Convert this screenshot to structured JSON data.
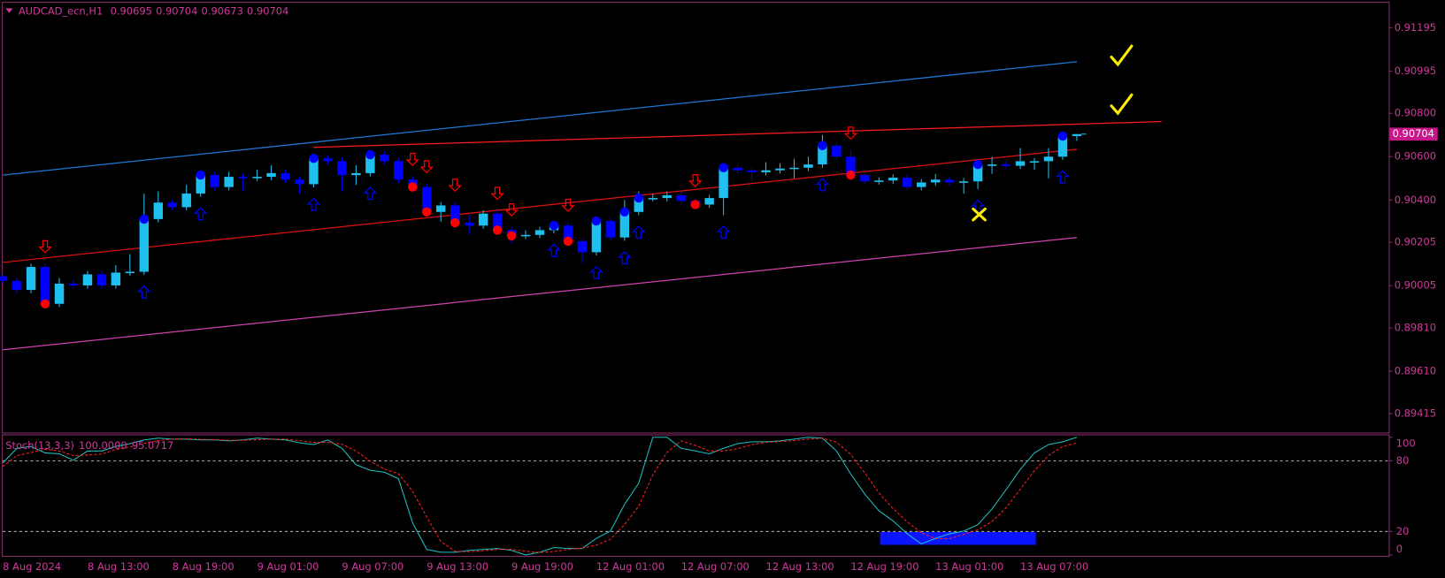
{
  "chart_data": [
    {
      "type": "candlestick",
      "symbol": "AUDCAD_ecn,H1",
      "categories": [
        "8 Aug 2024",
        null,
        null,
        null,
        null,
        null,
        "8 Aug 13:00",
        null,
        null,
        null,
        null,
        null,
        "8 Aug 19:00",
        null,
        null,
        null,
        null,
        null,
        "9 Aug 01:00",
        null,
        null,
        null,
        null,
        null,
        "9 Aug 07:00",
        null,
        null,
        null,
        null,
        null,
        "9 Aug 13:00",
        null,
        null,
        null,
        null,
        null,
        "9 Aug 19:00",
        null,
        null,
        null,
        null,
        null,
        "12 Aug 01:00",
        null,
        null,
        null,
        null,
        null,
        "12 Aug 07:00",
        null,
        null,
        null,
        null,
        null,
        "12 Aug 13:00",
        null,
        null,
        null,
        null,
        null,
        "12 Aug 19:00",
        null,
        null,
        null,
        null,
        null,
        "13 Aug 01:00",
        null,
        null,
        null,
        null,
        null,
        "13 Aug 07:00",
        null,
        null,
        null,
        null
      ],
      "open": [
        0.90048,
        0.90027,
        0.89985,
        0.90091,
        0.89921,
        0.90014,
        0.90006,
        0.90057,
        0.90006,
        0.90065,
        0.90069,
        0.90312,
        0.90388,
        0.90367,
        0.9043,
        0.90515,
        0.9046,
        0.90507,
        0.90503,
        0.90507,
        0.90524,
        0.90494,
        0.90473,
        0.90592,
        0.90579,
        0.90515,
        0.90524,
        0.90609,
        0.90579,
        0.90494,
        0.9046,
        0.90345,
        0.90375,
        0.90295,
        0.90282,
        0.90337,
        0.90261,
        0.90235,
        0.90239,
        0.90261,
        0.90282,
        0.9021,
        0.90159,
        0.90303,
        0.90227,
        0.90345,
        0.90409,
        0.90409,
        0.90422,
        0.90396,
        0.90379,
        0.90409,
        0.90549,
        0.90537,
        0.90528,
        0.90537,
        0.90545,
        0.90549,
        0.90564,
        0.90651,
        0.906,
        0.90515,
        0.90486,
        0.9049,
        0.90503,
        0.9046,
        0.90481,
        0.90494,
        0.90481,
        0.90486,
        0.90564,
        0.90564,
        0.90558,
        0.90579,
        0.90579,
        0.906,
        0.90695
      ],
      "high": [
        0.90063,
        0.90042,
        0.90106,
        0.90106,
        0.9004,
        0.90029,
        0.90072,
        0.90072,
        0.901,
        0.9015,
        0.9043,
        0.9044,
        0.90403,
        0.9047,
        0.9053,
        0.9053,
        0.9053,
        0.90522,
        0.9054,
        0.9056,
        0.90539,
        0.90509,
        0.90607,
        0.90607,
        0.90594,
        0.9056,
        0.90624,
        0.90624,
        0.90594,
        0.90509,
        0.90475,
        0.9039,
        0.9039,
        0.9033,
        0.90352,
        0.90352,
        0.90276,
        0.9026,
        0.90276,
        0.90297,
        0.90297,
        0.90225,
        0.90318,
        0.90318,
        0.904,
        0.9044,
        0.9043,
        0.9044,
        0.90437,
        0.90411,
        0.90424,
        0.90564,
        0.90564,
        0.90552,
        0.90575,
        0.9057,
        0.9059,
        0.906,
        0.907,
        0.90666,
        0.9063,
        0.9053,
        0.90505,
        0.90518,
        0.90518,
        0.90496,
        0.9052,
        0.90509,
        0.90501,
        0.90579,
        0.906,
        0.90579,
        0.9064,
        0.90594,
        0.9064,
        0.9071,
        0.90704
      ],
      "low": [
        0.90012,
        0.8997,
        0.8997,
        0.899,
        0.89906,
        0.89991,
        0.89991,
        0.89991,
        0.89991,
        0.9005,
        0.90054,
        0.90297,
        0.90352,
        0.90352,
        0.90415,
        0.90445,
        0.90445,
        0.9044,
        0.90488,
        0.90492,
        0.90479,
        0.9043,
        0.90458,
        0.90564,
        0.9044,
        0.9047,
        0.90509,
        0.90564,
        0.90479,
        0.90445,
        0.9033,
        0.903,
        0.9028,
        0.9024,
        0.90267,
        0.90246,
        0.902,
        0.9022,
        0.90224,
        0.90246,
        0.90195,
        0.9011,
        0.90144,
        0.90212,
        0.90212,
        0.9033,
        0.90394,
        0.90394,
        0.90381,
        0.90364,
        0.90364,
        0.9033,
        0.90522,
        0.9049,
        0.90513,
        0.90522,
        0.905,
        0.90534,
        0.90549,
        0.90585,
        0.905,
        0.90471,
        0.90471,
        0.90475,
        0.90445,
        0.90445,
        0.90466,
        0.90466,
        0.9043,
        0.9045,
        0.9052,
        0.90543,
        0.90543,
        0.9054,
        0.905,
        0.90585,
        0.90673
      ],
      "close": [
        0.90027,
        0.89985,
        0.90091,
        0.89921,
        0.90014,
        0.90006,
        0.90057,
        0.90006,
        0.90065,
        0.90069,
        0.90312,
        0.90388,
        0.90367,
        0.9043,
        0.90515,
        0.9046,
        0.90507,
        0.90503,
        0.90507,
        0.90524,
        0.90494,
        0.90473,
        0.90592,
        0.90579,
        0.90515,
        0.90524,
        0.90609,
        0.90579,
        0.90494,
        0.9046,
        0.90345,
        0.90375,
        0.90295,
        0.90282,
        0.90337,
        0.90261,
        0.90235,
        0.90239,
        0.90261,
        0.90282,
        0.9021,
        0.90159,
        0.90303,
        0.90227,
        0.90345,
        0.90409,
        0.90409,
        0.90422,
        0.90396,
        0.90379,
        0.90409,
        0.90549,
        0.90537,
        0.90528,
        0.90537,
        0.90545,
        0.90549,
        0.90564,
        0.90651,
        0.906,
        0.90515,
        0.90486,
        0.9049,
        0.90503,
        0.9046,
        0.90481,
        0.90494,
        0.90481,
        0.90486,
        0.90564,
        0.90564,
        0.90558,
        0.90579,
        0.90579,
        0.906,
        0.90695,
        0.90704
      ],
      "up_color": "#1ec0f0",
      "down_color": "#0000ff",
      "ylim": [
        0.89327,
        0.9131
      ],
      "yticks": [
        0.91195,
        0.90995,
        {
          "value": 0.908,
          "label": "0.90800"
        },
        {
          "value": 0.906,
          "label": "0.90600"
        },
        {
          "value": 0.904,
          "label": "0.90400"
        },
        0.90205,
        0.90005,
        {
          "value": 0.8981,
          "label": "0.89810"
        },
        {
          "value": 0.8961,
          "label": "0.89610"
        },
        0.89415
      ],
      "lines": [
        {
          "color": "#1e78d8",
          "x": [
            0,
            76
          ],
          "values": [
            0.90515,
            0.91038
          ]
        },
        {
          "color": "#e01010",
          "x": [
            0,
            76
          ],
          "values": [
            0.90112,
            0.90634
          ]
        },
        {
          "color": "#d040b0",
          "x": [
            0,
            76
          ],
          "values": [
            0.89709,
            0.90227
          ]
        },
        {
          "color": "#ff1a1a",
          "x": [
            22,
            82
          ],
          "values": [
            0.90643,
            0.90762
          ]
        }
      ],
      "buy_signals": [
        10,
        14,
        22,
        26,
        39,
        42,
        44,
        45,
        51,
        58,
        69,
        75
      ],
      "sell_signals": [
        3,
        29,
        30,
        32,
        35,
        36,
        40,
        49,
        60
      ],
      "buy_color": "#0000ff",
      "sell_color": "#ff0000",
      "price_label_color": "#c8158a"
    },
    {
      "type": "stochastic",
      "name": "Stoch(13,3,3)",
      "last_label": "100.0000",
      "series": [
        {
          "color": "#20c0c0",
          "values": [
            78.1,
            90.6,
            92.2,
            86.7,
            85.9,
            80.5,
            88.3,
            88.3,
            92.2,
            94.5,
            97.7,
            99.2,
            98.4,
            98.4,
            97.7,
            97.7,
            96.9,
            97.7,
            99.2,
            98.4,
            97.7,
            95.3,
            93.8,
            97.7,
            90.6,
            76.6,
            71.9,
            70.3,
            64.8,
            27.3,
            4.7,
            2.3,
            2.3,
            3.9,
            4.7,
            5.5,
            3.9,
            0,
            2.3,
            6.3,
            5.5,
            5.5,
            14.1,
            20.3,
            43.0,
            60.9,
            100,
            100,
            90.6,
            88.3,
            85.9,
            90.6,
            94.5,
            96.1,
            96.1,
            96.9,
            98.4,
            100,
            99.2,
            88.3,
            68.8,
            51.6,
            37.5,
            28.9,
            18.0,
            9.4,
            14.1,
            18.0,
            20.3,
            25.8,
            39.1,
            55.5,
            72.7,
            86.7,
            93.8,
            96.1,
            100
          ]
        },
        {
          "color": "#ff2020",
          "dashed": true,
          "values": [
            75.0,
            84.4,
            87.0,
            89.8,
            88.3,
            84.4,
            84.9,
            85.7,
            89.6,
            91.7,
            94.8,
            97.1,
            98.4,
            98.7,
            98.2,
            97.9,
            97.4,
            97.4,
            97.9,
            98.4,
            98.4,
            97.1,
            95.6,
            95.6,
            94.0,
            88.3,
            79.7,
            72.9,
            69.0,
            54.1,
            32.3,
            11.4,
            3.1,
            2.8,
            3.6,
            4.7,
            4.7,
            3.1,
            2.1,
            2.9,
            4.7,
            5.8,
            8.4,
            13.3,
            25.8,
            41.4,
            68.0,
            87.0,
            96.9,
            93.0,
            88.3,
            88.3,
            90.3,
            93.7,
            95.6,
            96.4,
            97.1,
            98.4,
            99.2,
            95.8,
            85.4,
            69.6,
            52.6,
            39.3,
            28.1,
            18.8,
            13.8,
            13.8,
            17.5,
            21.4,
            28.4,
            40.1,
            55.8,
            71.6,
            84.4,
            92.2,
            95.0717
          ]
        }
      ],
      "ylim": [
        -1.6,
        101.6
      ],
      "yticks": [
        0,
        20,
        80,
        100
      ],
      "levels": [
        20,
        80
      ],
      "level_color": "#dddddd"
    }
  ]
}
